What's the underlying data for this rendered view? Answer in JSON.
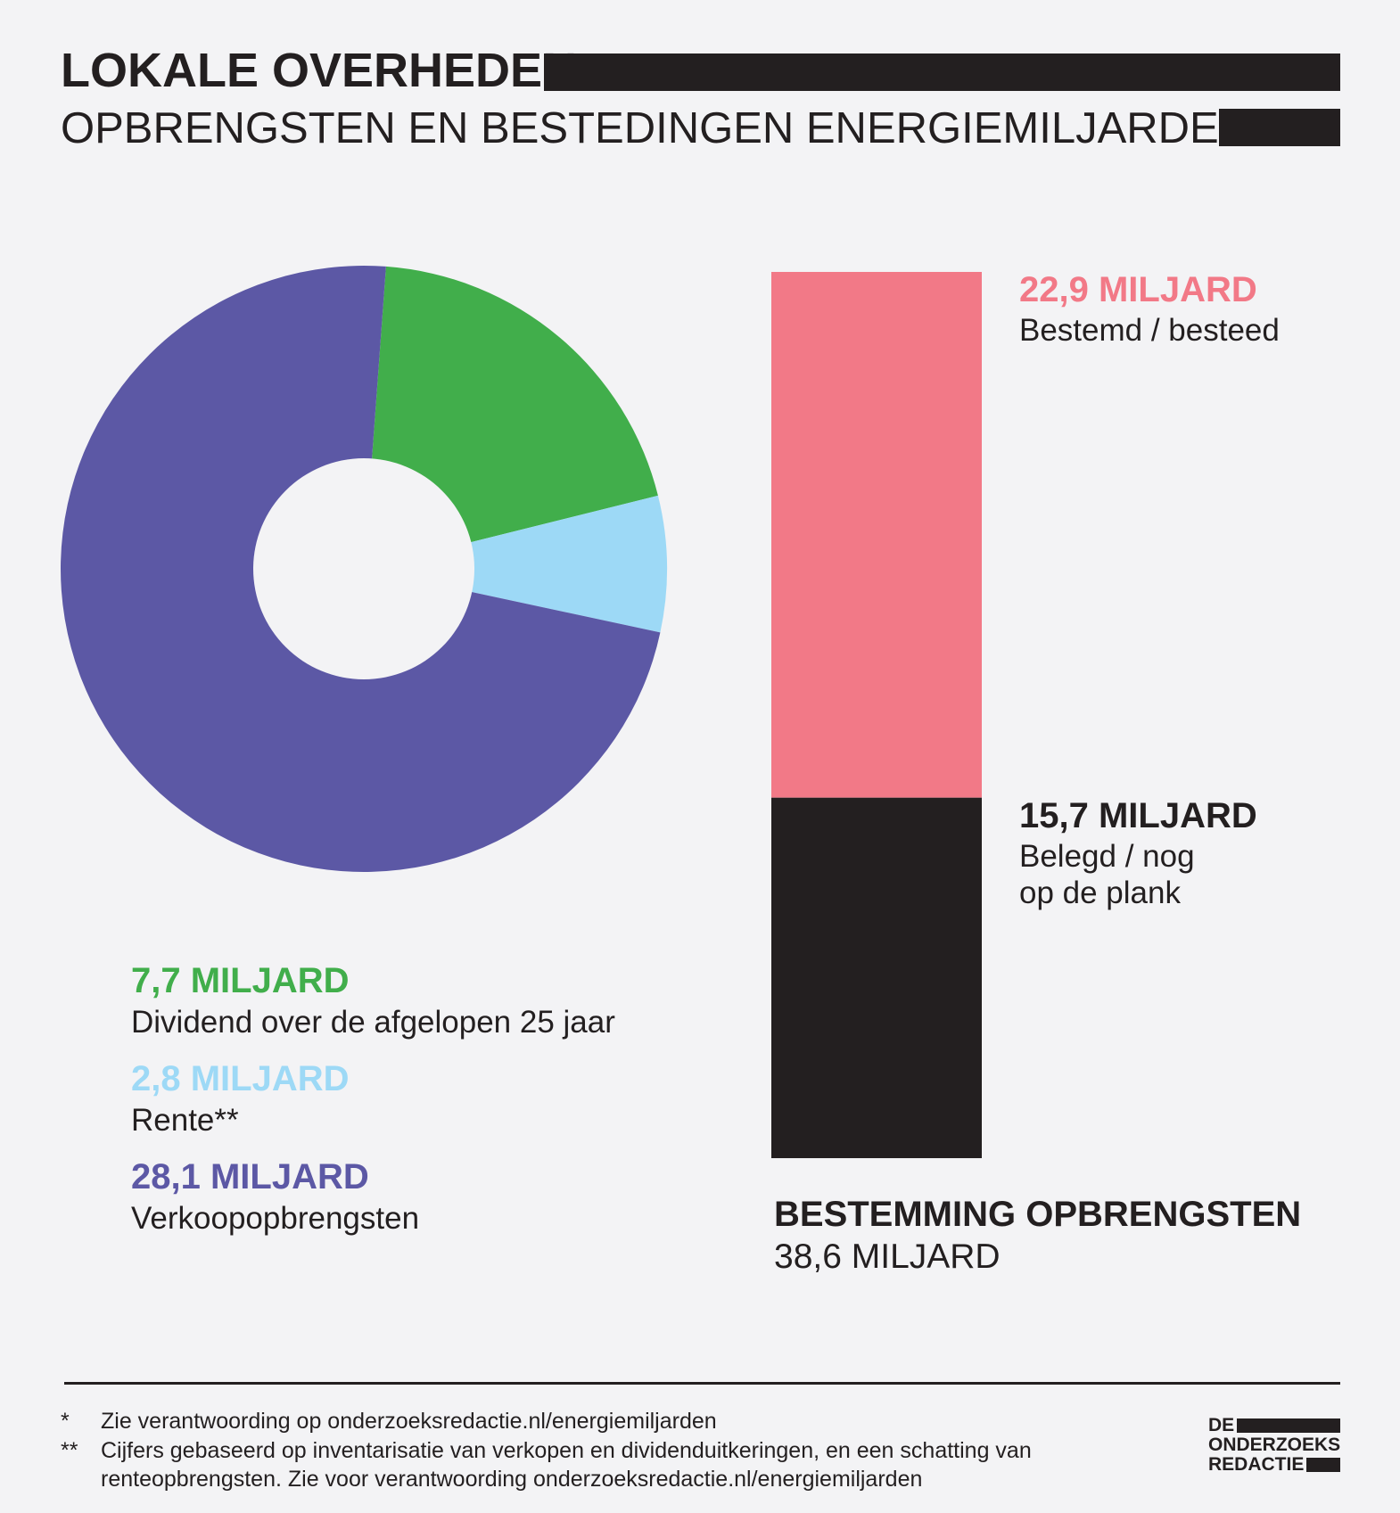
{
  "title": "LOKALE OVERHEDEN",
  "subtitle": "OPBRENGSTEN EN BESTEDINGEN ENERGIEMILJARDEN*",
  "chart_data": [
    {
      "type": "pie",
      "categories": [
        "Dividend over de afgelopen 25 jaar",
        "Rente**",
        "Verkoopopbrengsten"
      ],
      "values": [
        7.7,
        2.8,
        28.1
      ],
      "value_labels": [
        "7,7 MILJARD",
        "2,8 MILJARD",
        "28,1 MILJARD"
      ],
      "colors": [
        "#41ae4b",
        "#9dd9f6",
        "#5c58a5"
      ],
      "donut": true
    },
    {
      "type": "bar",
      "stacked": true,
      "title": "BESTEMMING OPBRENGSTEN",
      "total_label": "38,6 MILJARD",
      "total": 38.6,
      "categories": [
        "Bestemd / besteed",
        "Belegd / nog\nop de plank"
      ],
      "values": [
        22.9,
        15.7
      ],
      "value_labels": [
        "22,9 MILJARD",
        "15,7 MILJARD"
      ],
      "colors": [
        "#f27987",
        "#231f20"
      ]
    }
  ],
  "footnotes": [
    {
      "mark": "*",
      "text": "Zie verantwoording op onderzoeksredactie.nl/energiemiljarden"
    },
    {
      "mark": "**",
      "text": "Cijfers gebaseerd op inventarisatie van verkopen en dividenduitkeringen, en een schatting van renteopbrengsten. Zie voor verantwoording onderzoeksredactie.nl/energiemiljarden"
    }
  ],
  "logo": [
    "DE",
    "ONDERZOEKS",
    "REDACTIE"
  ]
}
